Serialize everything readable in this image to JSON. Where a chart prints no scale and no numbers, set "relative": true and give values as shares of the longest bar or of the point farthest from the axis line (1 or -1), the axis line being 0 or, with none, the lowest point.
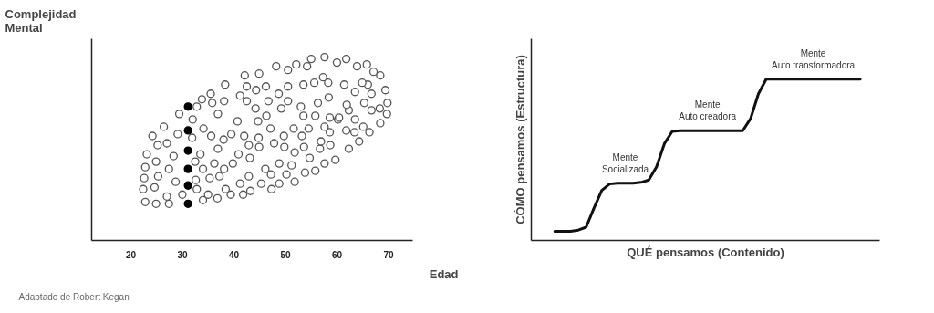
{
  "chart_data": [
    {
      "type": "scatter",
      "ylabel": "Complejidad\nMental",
      "xlabel": "Edad",
      "relative": true,
      "marker": "circle",
      "grid": false,
      "tick_labels": "x",
      "xlim": [
        12.4,
        74.7
      ],
      "xticks": [
        20,
        30,
        40,
        50,
        60,
        70
      ],
      "annotations": [
        "Adaptado de Robert Kegan"
      ],
      "series": [
        {
          "color": "#555555",
          "x": [
            22.8,
            24.9,
            27.4,
            34.0,
            36.8,
            39.4,
            41.8,
            43.2,
            47.3,
            48.8,
            51.8,
            22.4,
            24.6,
            27.0,
            30.0,
            32.8,
            35.0,
            38.4,
            41.2,
            42.9,
            45.3,
            47.2,
            50.2,
            53.8,
            55.8,
            57.6,
            59.7,
            62.3,
            64.3,
            66.3,
            22.6,
            25.3,
            28.7,
            32.6,
            35.3,
            37.2,
            22.8,
            27.4,
            32.5,
            34.0,
            36.2,
            38.1,
            39.8,
            43.1,
            46.1,
            48.8,
            51.2,
            54.7,
            56.7,
            58.7,
            61.8,
            63.4,
            65.1,
            68.4,
            23.1,
            24.9,
            28.3,
            33.5,
            36.9,
            40.9,
            42.9,
            44.9,
            47.8,
            49.8,
            51.8,
            53.6,
            56.9,
            58.6,
            60.2,
            63.5,
            66.7,
            68.3,
            69.7,
            24.2,
            25.2,
            27.0,
            31.9,
            35.6,
            38.0,
            42.0,
            44.8,
            47.1,
            49.7,
            53.2,
            54.5,
            57.6,
            60.4,
            62.3,
            65.3,
            66.7,
            69.8,
            26.4,
            29.1,
            32.0,
            34.1,
            36.9,
            39.5,
            40.7,
            44.7,
            46.3,
            49.2,
            51.6,
            53.5,
            55.8,
            58.6,
            29.4,
            32.8,
            35.8,
            38.1,
            42.5,
            44.2,
            46.7,
            50.5,
            53.0,
            56.3,
            58.4,
            61.9,
            63.5,
            66.0,
            69.4,
            33.8,
            35.5,
            38.3,
            41.2,
            42.5,
            44.3,
            46.2,
            48.7,
            50.5,
            53.5,
            55.6,
            58.3,
            61.4,
            64.9,
            68.4,
            42.1,
            44.9,
            48.2,
            50.5,
            52.1,
            54.2,
            55.0,
            57.6,
            57.3,
            60.0,
            61.8,
            63.9,
            65.8,
            67.1
          ],
          "values": [
            0.21,
            0.2,
            0.2,
            0.22,
            0.23,
            0.25,
            0.25,
            0.27,
            0.28,
            0.31,
            0.32,
            0.28,
            0.29,
            0.24,
            0.25,
            0.28,
            0.25,
            0.28,
            0.31,
            0.35,
            0.31,
            0.36,
            0.36,
            0.37,
            0.38,
            0.42,
            0.44,
            0.5,
            0.54,
            0.59,
            0.34,
            0.35,
            0.32,
            0.33,
            0.34,
            0.35,
            0.4,
            0.39,
            0.43,
            0.39,
            0.42,
            0.39,
            0.42,
            0.45,
            0.39,
            0.42,
            0.41,
            0.45,
            0.5,
            0.52,
            0.6,
            0.59,
            0.62,
            0.64,
            0.47,
            0.43,
            0.46,
            0.47,
            0.5,
            0.47,
            0.52,
            0.51,
            0.53,
            0.51,
            0.48,
            0.51,
            0.54,
            0.59,
            0.66,
            0.66,
            0.71,
            0.72,
            0.69,
            0.57,
            0.52,
            0.53,
            0.56,
            0.57,
            0.55,
            0.57,
            0.56,
            0.61,
            0.57,
            0.57,
            0.61,
            0.62,
            0.67,
            0.71,
            0.75,
            0.8,
            0.75,
            0.62,
            0.58,
            0.66,
            0.61,
            0.69,
            0.58,
            0.65,
            0.65,
            0.68,
            0.72,
            0.61,
            0.68,
            0.68,
            0.67,
            0.69,
            0.73,
            0.75,
            0.76,
            0.76,
            0.72,
            0.76,
            0.76,
            0.73,
            0.75,
            0.78,
            0.74,
            0.81,
            0.85,
            0.82,
            0.77,
            0.8,
            0.85,
            0.79,
            0.84,
            0.82,
            0.84,
            0.8,
            0.84,
            0.85,
            0.86,
            0.86,
            0.85,
            0.86,
            0.9,
            0.9,
            0.91,
            0.95,
            0.93,
            0.96,
            0.95,
            0.99,
            1.0,
            0.89,
            0.97,
            0.99,
            0.95,
            0.96,
            0.92
          ]
        },
        {
          "color": "#000000",
          "x": [
            31.1,
            31.1,
            31.1,
            31.1,
            31.1,
            31.1
          ],
          "values": [
            0.73,
            0.6,
            0.49,
            0.39,
            0.3,
            0.2
          ]
        }
      ]
    },
    {
      "type": "line",
      "ylabel": "CÓMO pensamos (Estructura)",
      "xlabel": "QUÉ pensamos (Contenido)",
      "relative": true,
      "grid": false,
      "tick_labels": false,
      "categories": [
        null,
        null,
        null,
        null,
        null,
        null,
        null,
        null,
        null,
        null,
        null,
        null,
        null,
        null,
        null,
        null,
        null,
        null,
        null,
        null,
        null,
        null,
        null,
        null,
        null,
        null,
        null,
        null,
        null,
        null,
        null,
        null,
        null,
        null,
        null,
        null,
        null,
        null,
        null,
        null
      ],
      "annotations": [
        {
          "text": "Mente\nSocializada",
          "y": 0.355
        },
        {
          "text": "Mente\nAuto creadora",
          "y": 0.68
        },
        {
          "text": "Mente\nAuto transformadora",
          "y": 1.0
        }
      ],
      "series": [
        {
          "color": "#111111",
          "values": [
            0.057,
            0.057,
            0.057,
            0.064,
            0.082,
            0.2,
            0.31,
            0.35,
            0.355,
            0.355,
            0.355,
            0.36,
            0.375,
            0.457,
            0.6,
            0.676,
            0.68,
            0.68,
            0.68,
            0.68,
            0.68,
            0.68,
            0.68,
            0.68,
            0.68,
            0.754,
            0.908,
            1.0,
            1.0,
            1.0,
            1.0,
            1.0,
            1.0,
            1.0,
            1.0,
            1.0,
            1.0,
            1.0,
            1.0,
            1.0
          ]
        }
      ]
    }
  ]
}
